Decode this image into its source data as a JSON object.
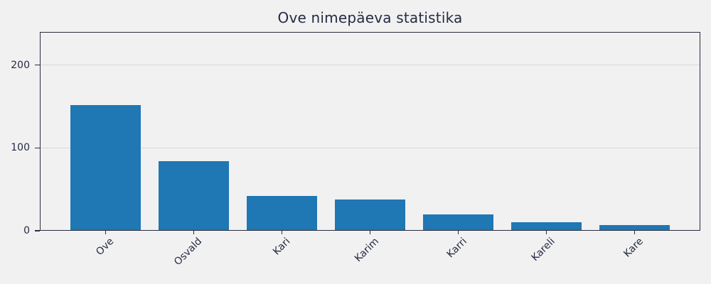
{
  "chart_data": {
    "type": "bar",
    "title": "Ove nimepäeva statistika",
    "categories": [
      "Ove",
      "Osvald",
      "Kari",
      "Karim",
      "Karri",
      "Kareli",
      "Kare"
    ],
    "values": [
      152,
      84,
      42,
      38,
      20,
      10,
      7
    ],
    "xlabel": "",
    "ylabel": "",
    "ylim": [
      0,
      240
    ],
    "yticks": [
      0,
      100,
      200
    ],
    "grid": true,
    "legend": "none",
    "bar_color": "#1f77b4",
    "xtick_rotation_deg": 45
  },
  "figure": {
    "background_color": "#f1f1f2",
    "spine_color": "#2a2d3e",
    "grid_color": "#d7d8da",
    "text_color": "#262b42"
  }
}
